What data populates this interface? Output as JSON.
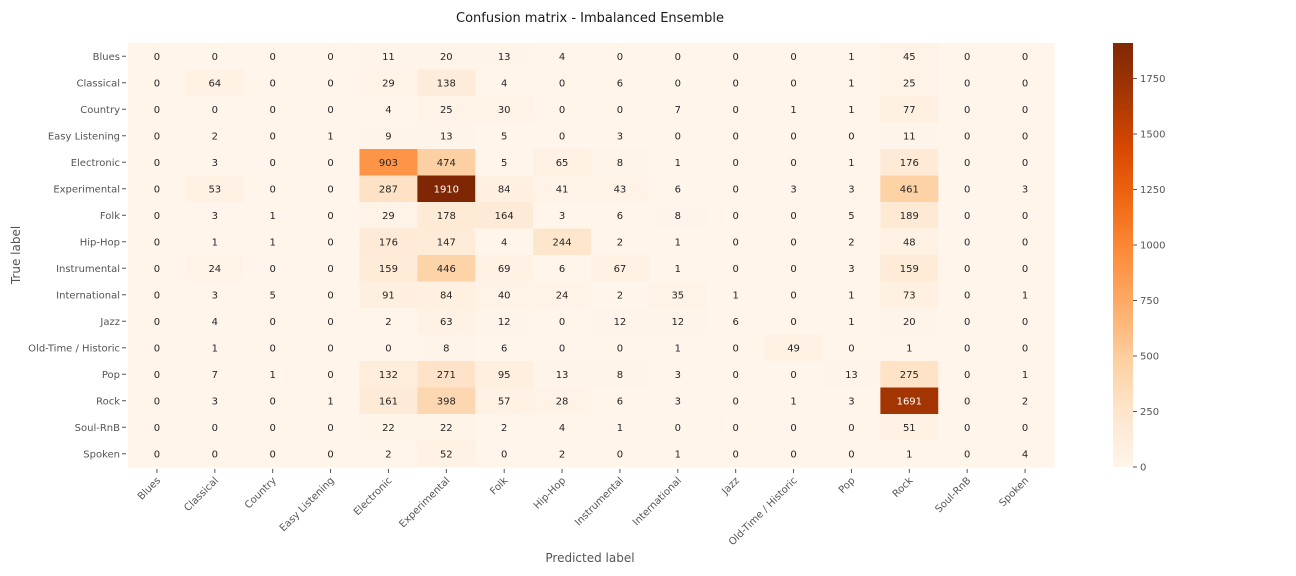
{
  "chart_data": {
    "type": "heatmap",
    "title": "Confusion matrix - Imbalanced Ensemble",
    "xlabel": "Predicted label",
    "ylabel": "True label",
    "labels": [
      "Blues",
      "Classical",
      "Country",
      "Easy Listening",
      "Electronic",
      "Experimental",
      "Folk",
      "Hip-Hop",
      "Instrumental",
      "International",
      "Jazz",
      "Old-Time / Historic",
      "Pop",
      "Rock",
      "Soul-RnB",
      "Spoken"
    ],
    "matrix": [
      [
        0,
        0,
        0,
        0,
        11,
        20,
        13,
        4,
        0,
        0,
        0,
        0,
        1,
        45,
        0,
        0
      ],
      [
        0,
        64,
        0,
        0,
        29,
        138,
        4,
        0,
        6,
        0,
        0,
        0,
        1,
        25,
        0,
        0
      ],
      [
        0,
        0,
        0,
        0,
        4,
        25,
        30,
        0,
        0,
        7,
        0,
        1,
        1,
        77,
        0,
        0
      ],
      [
        0,
        2,
        0,
        1,
        9,
        13,
        5,
        0,
        3,
        0,
        0,
        0,
        0,
        11,
        0,
        0
      ],
      [
        0,
        3,
        0,
        0,
        903,
        474,
        5,
        65,
        8,
        1,
        0,
        0,
        1,
        176,
        0,
        0
      ],
      [
        0,
        53,
        0,
        0,
        287,
        1910,
        84,
        41,
        43,
        6,
        0,
        3,
        3,
        461,
        0,
        3
      ],
      [
        0,
        3,
        1,
        0,
        29,
        178,
        164,
        3,
        6,
        8,
        0,
        0,
        5,
        189,
        0,
        0
      ],
      [
        0,
        1,
        1,
        0,
        176,
        147,
        4,
        244,
        2,
        1,
        0,
        0,
        2,
        48,
        0,
        0
      ],
      [
        0,
        24,
        0,
        0,
        159,
        446,
        69,
        6,
        67,
        1,
        0,
        0,
        3,
        159,
        0,
        0
      ],
      [
        0,
        3,
        5,
        0,
        91,
        84,
        40,
        24,
        2,
        35,
        1,
        0,
        1,
        73,
        0,
        1
      ],
      [
        0,
        4,
        0,
        0,
        2,
        63,
        12,
        0,
        12,
        12,
        6,
        0,
        1,
        20,
        0,
        0
      ],
      [
        0,
        1,
        0,
        0,
        0,
        8,
        6,
        0,
        0,
        1,
        0,
        49,
        0,
        1,
        0,
        0
      ],
      [
        0,
        7,
        1,
        0,
        132,
        271,
        95,
        13,
        8,
        3,
        0,
        0,
        13,
        275,
        0,
        1
      ],
      [
        0,
        3,
        0,
        1,
        161,
        398,
        57,
        28,
        6,
        3,
        0,
        1,
        3,
        1691,
        0,
        2
      ],
      [
        0,
        0,
        0,
        0,
        22,
        22,
        2,
        4,
        1,
        0,
        0,
        0,
        0,
        51,
        0,
        0
      ],
      [
        0,
        0,
        0,
        0,
        2,
        52,
        0,
        2,
        0,
        1,
        0,
        0,
        0,
        1,
        0,
        4
      ]
    ],
    "colorbar": {
      "colormap": "Oranges",
      "vmin": 0,
      "vmax": 1910,
      "ticks": [
        0,
        250,
        500,
        750,
        1000,
        1250,
        1500,
        1750
      ]
    },
    "grid": false
  }
}
